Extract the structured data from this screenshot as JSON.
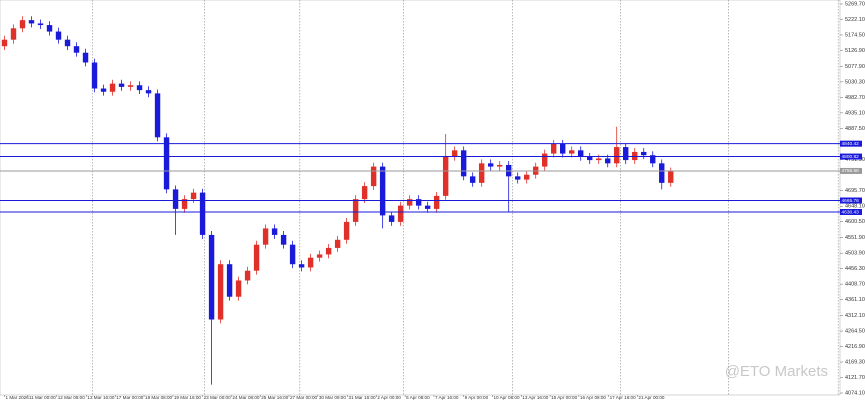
{
  "chart_data": {
    "type": "candlestick",
    "up_color": "#e0302a",
    "down_color": "#1a1adb",
    "open": [
      5140,
      5160,
      5195,
      5220,
      5210,
      5205,
      5185,
      5160,
      5140,
      5120,
      5090,
      5010,
      5000,
      5025,
      5015,
      5020,
      5005,
      4995,
      4860,
      4700,
      4640,
      4670,
      4690,
      4560,
      4300,
      4470,
      4370,
      4420,
      4450,
      4530,
      4580,
      4560,
      4530,
      4470,
      4460,
      4490,
      4500,
      4520,
      4545,
      4600,
      4670,
      4710,
      4770,
      4620,
      4600,
      4650,
      4670,
      4650,
      4640,
      4680,
      4800,
      4820,
      4740,
      4720,
      4780,
      4770,
      4775,
      4740,
      4730,
      4745,
      4770,
      4810,
      4840,
      4810,
      4820,
      4800,
      4790,
      4795,
      4780,
      4830,
      4790,
      4815,
      4805,
      4780,
      4720
    ],
    "high": [
      5172,
      5207,
      5232,
      5232,
      5222,
      5217,
      5197,
      5172,
      5152,
      5132,
      5102,
      5022,
      5037,
      5037,
      5032,
      5032,
      5017,
      5007,
      4872,
      4712,
      4682,
      4702,
      4702,
      4572,
      4482,
      4482,
      4432,
      4462,
      4542,
      4592,
      4592,
      4572,
      4542,
      4482,
      4502,
      4512,
      4532,
      4557,
      4612,
      4682,
      4722,
      4782,
      4782,
      4632,
      4662,
      4682,
      4682,
      4662,
      4692,
      4870,
      4832,
      4832,
      4752,
      4792,
      4792,
      4787,
      4787,
      4752,
      4757,
      4782,
      4822,
      4852,
      4852,
      4832,
      4832,
      4812,
      4807,
      4807,
      4893,
      4842,
      4827,
      4827,
      4817,
      4792,
      4767
    ],
    "low": [
      5128,
      5148,
      5183,
      5198,
      5193,
      5173,
      5148,
      5128,
      5108,
      5078,
      4998,
      4988,
      4988,
      5003,
      5003,
      4993,
      4983,
      4848,
      4688,
      4560,
      4628,
      4658,
      4548,
      4100,
      4288,
      4358,
      4358,
      4408,
      4438,
      4518,
      4548,
      4518,
      4458,
      4448,
      4448,
      4478,
      4488,
      4508,
      4533,
      4588,
      4658,
      4698,
      4580,
      4588,
      4588,
      4638,
      4638,
      4628,
      4628,
      4668,
      4788,
      4728,
      4708,
      4708,
      4758,
      4758,
      4630,
      4718,
      4718,
      4733,
      4758,
      4798,
      4798,
      4798,
      4788,
      4778,
      4778,
      4768,
      4768,
      4778,
      4778,
      4793,
      4768,
      4700,
      4708
    ],
    "close": [
      5160,
      5195,
      5220,
      5210,
      5205,
      5185,
      5160,
      5140,
      5120,
      5090,
      5010,
      5000,
      5025,
      5015,
      5020,
      5005,
      4995,
      4860,
      4700,
      4640,
      4670,
      4690,
      4560,
      4300,
      4470,
      4370,
      4420,
      4450,
      4530,
      4580,
      4560,
      4530,
      4470,
      4460,
      4490,
      4500,
      4520,
      4545,
      4600,
      4670,
      4710,
      4770,
      4620,
      4600,
      4650,
      4670,
      4650,
      4640,
      4680,
      4800,
      4820,
      4740,
      4720,
      4780,
      4770,
      4775,
      4740,
      4730,
      4745,
      4770,
      4810,
      4840,
      4810,
      4820,
      4800,
      4790,
      4795,
      4780,
      4830,
      4790,
      4815,
      4805,
      4780,
      4720,
      4755
    ],
    "xlim": [
      -0.5,
      92.8
    ],
    "ylim": [
      4068,
      5282
    ],
    "yticks": [
      {
        "value": 5269.7,
        "label": "5269.70"
      },
      {
        "value": 5222.1,
        "label": "5222.10"
      },
      {
        "value": 5174.5,
        "label": "5174.50"
      },
      {
        "value": 5126.9,
        "label": "5126.90"
      },
      {
        "value": 5077.9,
        "label": "5077.90"
      },
      {
        "value": 5030.3,
        "label": "5030.30"
      },
      {
        "value": 4982.7,
        "label": "4982.70"
      },
      {
        "value": 4935.1,
        "label": "4935.10"
      },
      {
        "value": 4887.5,
        "label": "4887.50"
      },
      {
        "value": 4791.9,
        "label": "4791.90"
      },
      {
        "value": 4695.7,
        "label": "4695.70"
      },
      {
        "value": 4648.1,
        "label": "4648.10"
      },
      {
        "value": 4600.5,
        "label": "4600.50"
      },
      {
        "value": 4551.9,
        "label": "4551.90"
      },
      {
        "value": 4503.9,
        "label": "4503.90"
      },
      {
        "value": 4456.3,
        "label": "4456.30"
      },
      {
        "value": 4408.7,
        "label": "4408.70"
      },
      {
        "value": 4361.1,
        "label": "4361.10"
      },
      {
        "value": 4312.1,
        "label": "4312.10"
      },
      {
        "value": 4264.5,
        "label": "4264.50"
      },
      {
        "value": 4216.9,
        "label": "4216.90"
      },
      {
        "value": 4169.3,
        "label": "4169.30"
      },
      {
        "value": 4121.7,
        "label": "4121.70"
      },
      {
        "value": 4074.1,
        "label": "4074.10"
      }
    ],
    "xticks": [
      {
        "value": 0,
        "label": "1 Mar 2026"
      },
      {
        "value": 2.6,
        "label": "11 Mar 00:00"
      },
      {
        "value": 5.8,
        "label": "12 Mar 08:00"
      },
      {
        "value": 9.1,
        "label": "13 Mar 16:00"
      },
      {
        "value": 12.3,
        "label": "17 Mar 00:00"
      },
      {
        "value": 15.5,
        "label": "18 Mar 08:00"
      },
      {
        "value": 18.7,
        "label": "19 Mar 16:00"
      },
      {
        "value": 22,
        "label": "23 Mar 00:00"
      },
      {
        "value": 25.2,
        "label": "24 Mar 08:00"
      },
      {
        "value": 28.4,
        "label": "25 Mar 16:00"
      },
      {
        "value": 31.6,
        "label": "27 Mar 00:00"
      },
      {
        "value": 34.8,
        "label": "30 Mar 08:00"
      },
      {
        "value": 38.1,
        "label": "31 Mar 16:00"
      },
      {
        "value": 41.3,
        "label": "2 Apr 00:00"
      },
      {
        "value": 44.5,
        "label": "6 Apr 08:00"
      },
      {
        "value": 47.7,
        "label": "7 Apr 16:00"
      },
      {
        "value": 51,
        "label": "9 Apr 00:00"
      },
      {
        "value": 54.2,
        "label": "10 Apr 08:00"
      },
      {
        "value": 57.4,
        "label": "13 Apr 16:00"
      },
      {
        "value": 60.6,
        "label": "15 Apr 00:00"
      },
      {
        "value": 63.8,
        "label": "16 Apr 08:00"
      },
      {
        "value": 67.1,
        "label": "17 Apr 16:00"
      },
      {
        "value": 70.3,
        "label": "21 Apr 00:00"
      }
    ],
    "separators": [
      9.8,
      22.2,
      32.8,
      44.3,
      56.4,
      68.4,
      80.4,
      92.6
    ],
    "levels": [
      {
        "value": 4840.42,
        "color": "#1a1adb"
      },
      {
        "value": 4800.82,
        "color": "#1a1adb"
      },
      {
        "value": 4756.58,
        "color": "#9a9a9a"
      },
      {
        "value": 4665.76,
        "color": "#1a1adb"
      },
      {
        "value": 4630.43,
        "color": "#1a1adb"
      }
    ],
    "watermark": "@ETO Markets"
  }
}
